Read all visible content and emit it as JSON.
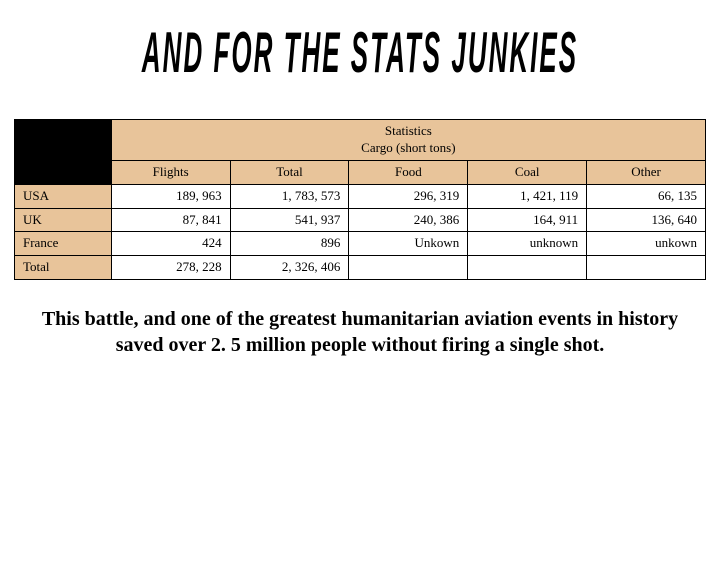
{
  "title": "AND FOR THE STATS JUNKIES",
  "table": {
    "type": "table",
    "top_header_lines": [
      "Statistics",
      "Cargo (short tons)"
    ],
    "columns": [
      "Flights",
      "Total",
      "Food",
      "Coal",
      "Other"
    ],
    "row_labels": [
      "USA",
      "UK",
      "France",
      "Total"
    ],
    "rows": [
      [
        "189, 963",
        "1, 783, 573",
        "296, 319",
        "1, 421, 119",
        "66, 135"
      ],
      [
        "87, 841",
        "541, 937",
        "240, 386",
        "164, 911",
        "136, 640"
      ],
      [
        "424",
        "896",
        "Unkown",
        "unknown",
        "unkown"
      ],
      [
        "278, 228",
        "2, 326, 406",
        "",
        "",
        ""
      ]
    ],
    "colors": {
      "header_bg": "#e8c49a",
      "corner_bg": "#000000",
      "border": "#000000",
      "cell_bg": "#ffffff",
      "text": "#000000"
    },
    "font_size_pt": 10,
    "column_widths_pct": [
      14,
      17.2,
      17.2,
      17.2,
      17.2,
      17.2
    ]
  },
  "caption": "This battle, and one of the greatest humanitarian aviation events in history saved over 2. 5 million people without firing a single shot.",
  "styling": {
    "title_font": "Arial Black Italic",
    "title_color": "#000000",
    "title_stretch_y": 2.2,
    "title_fontsize": 26,
    "body_font": "Georgia",
    "caption_fontsize": 20,
    "caption_weight": "bold",
    "background_color": "#ffffff"
  }
}
